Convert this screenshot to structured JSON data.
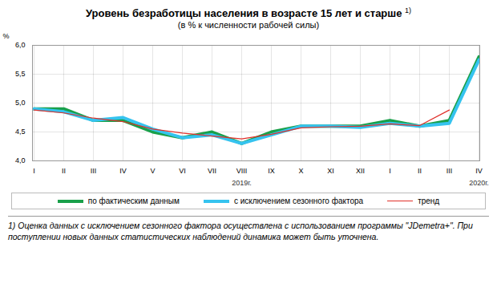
{
  "chart_data": {
    "type": "line",
    "title": "Уровень безработицы населения в возрасте 15 лет и старше",
    "title_note": "1)",
    "subtitle": "(в % к численности рабочей силы)",
    "y_label": "%",
    "footnote": "1) Оценка данных с исключением сезонного фактора осуществлена с использованием программы \"JDemetra+\". При поступлении новых данных статистических наблюдений динамика может быть уточнена.",
    "categories": [
      "I",
      "II",
      "III",
      "IV",
      "V",
      "VI",
      "VII",
      "VIII",
      "IX",
      "X",
      "XI",
      "XII",
      "I",
      "II",
      "III",
      "IV"
    ],
    "annotations": [
      {
        "text": "2019г.",
        "x": 7
      },
      {
        "text": "2020г.",
        "x": 15
      }
    ],
    "series": [
      {
        "name": "по фактическим данным",
        "color": "#19a04a",
        "line_style": "thick",
        "values": [
          4.9,
          4.9,
          4.7,
          4.7,
          4.5,
          4.4,
          4.5,
          4.3,
          4.5,
          4.6,
          4.6,
          4.6,
          4.7,
          4.6,
          4.7,
          5.8
        ]
      },
      {
        "name": "с исключением сезонного фактора",
        "color": "#35c3ef",
        "line_style": "thick",
        "values": [
          4.9,
          4.85,
          4.7,
          4.75,
          4.55,
          4.4,
          4.45,
          4.3,
          4.45,
          4.6,
          4.6,
          4.58,
          4.65,
          4.6,
          4.65,
          5.75
        ]
      },
      {
        "name": "тренд",
        "color": "#e0302a",
        "line_style": "thin",
        "values": [
          4.88,
          4.83,
          4.74,
          4.68,
          4.55,
          4.48,
          4.43,
          4.38,
          4.46,
          4.57,
          4.59,
          4.6,
          4.64,
          4.61,
          4.88,
          null
        ]
      }
    ],
    "ylim": [
      4,
      6
    ],
    "yticks": [
      {
        "value": 4,
        "label": "4,0"
      },
      {
        "value": 4.5,
        "label": "4,5"
      },
      {
        "value": 5,
        "label": "5,0"
      },
      {
        "value": 5.5,
        "label": "5,5"
      },
      {
        "value": 6,
        "label": "6,0"
      }
    ],
    "grid": true,
    "legend": "bottom"
  }
}
